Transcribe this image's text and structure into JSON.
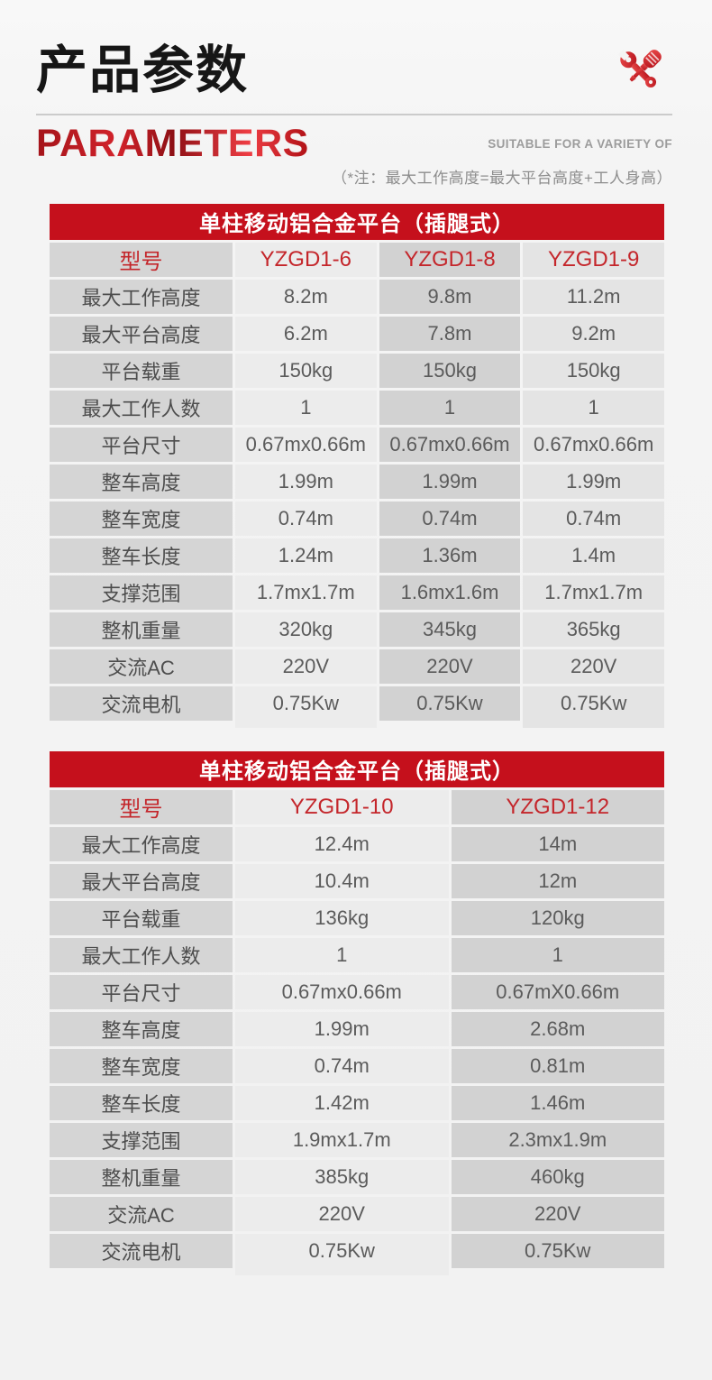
{
  "page": {
    "title_cn": "产品参数",
    "title_en": "PARAMETERS",
    "subtitle_right": "SUITABLE FOR A VARIETY OF",
    "note": "（*注：最大工作高度=最大平台高度+工人身高）",
    "colors": {
      "accent_red": "#c5101c",
      "model_red": "#c4262b",
      "label_cell_bg": "#d5d5d5",
      "light_cell_bg": "#ececec",
      "page_bg": "#f3f3f3"
    },
    "icons": {
      "top_right": "tools-icon (crossed wrench and screwdriver, red)"
    }
  },
  "tables": [
    {
      "title": "单柱移动铝合金平台（插腿式）",
      "header": [
        "型号",
        "YZGD1-6",
        "YZGD1-8",
        "YZGD1-9"
      ],
      "rows": [
        [
          "最大工作高度",
          "8.2m",
          "9.8m",
          "11.2m"
        ],
        [
          "最大平台高度",
          "6.2m",
          "7.8m",
          "9.2m"
        ],
        [
          "平台载重",
          "150kg",
          "150kg",
          "150kg"
        ],
        [
          "最大工作人数",
          "1",
          "1",
          "1"
        ],
        [
          "平台尺寸",
          "0.67mx0.66m",
          "0.67mx0.66m",
          "0.67mx0.66m"
        ],
        [
          "整车高度",
          "1.99m",
          "1.99m",
          "1.99m"
        ],
        [
          "整车宽度",
          "0.74m",
          "0.74m",
          "0.74m"
        ],
        [
          "整车长度",
          "1.24m",
          "1.36m",
          "1.4m"
        ],
        [
          "支撑范围",
          "1.7mx1.7m",
          "1.6mx1.6m",
          "1.7mx1.7m"
        ],
        [
          "整机重量",
          "320kg",
          "345kg",
          "365kg"
        ],
        [
          "交流AC",
          "220V",
          "220V",
          "220V"
        ],
        [
          "交流电机",
          "0.75Kw",
          "0.75Kw",
          "0.75Kw"
        ]
      ]
    },
    {
      "title": "单柱移动铝合金平台（插腿式）",
      "header": [
        "型号",
        "YZGD1-10",
        "YZGD1-12"
      ],
      "rows": [
        [
          "最大工作高度",
          "12.4m",
          "14m"
        ],
        [
          "最大平台高度",
          "10.4m",
          "12m"
        ],
        [
          "平台载重",
          "136kg",
          "120kg"
        ],
        [
          "最大工作人数",
          "1",
          "1"
        ],
        [
          "平台尺寸",
          "0.67mx0.66m",
          "0.67mX0.66m"
        ],
        [
          "整车高度",
          "1.99m",
          "2.68m"
        ],
        [
          "整车宽度",
          "0.74m",
          "0.81m"
        ],
        [
          "整车长度",
          "1.42m",
          "1.46m"
        ],
        [
          "支撑范围",
          "1.9mx1.7m",
          "2.3mx1.9m"
        ],
        [
          "整机重量",
          "385kg",
          "460kg"
        ],
        [
          "交流AC",
          "220V",
          "220V"
        ],
        [
          "交流电机",
          "0.75Kw",
          "0.75Kw"
        ]
      ]
    }
  ]
}
